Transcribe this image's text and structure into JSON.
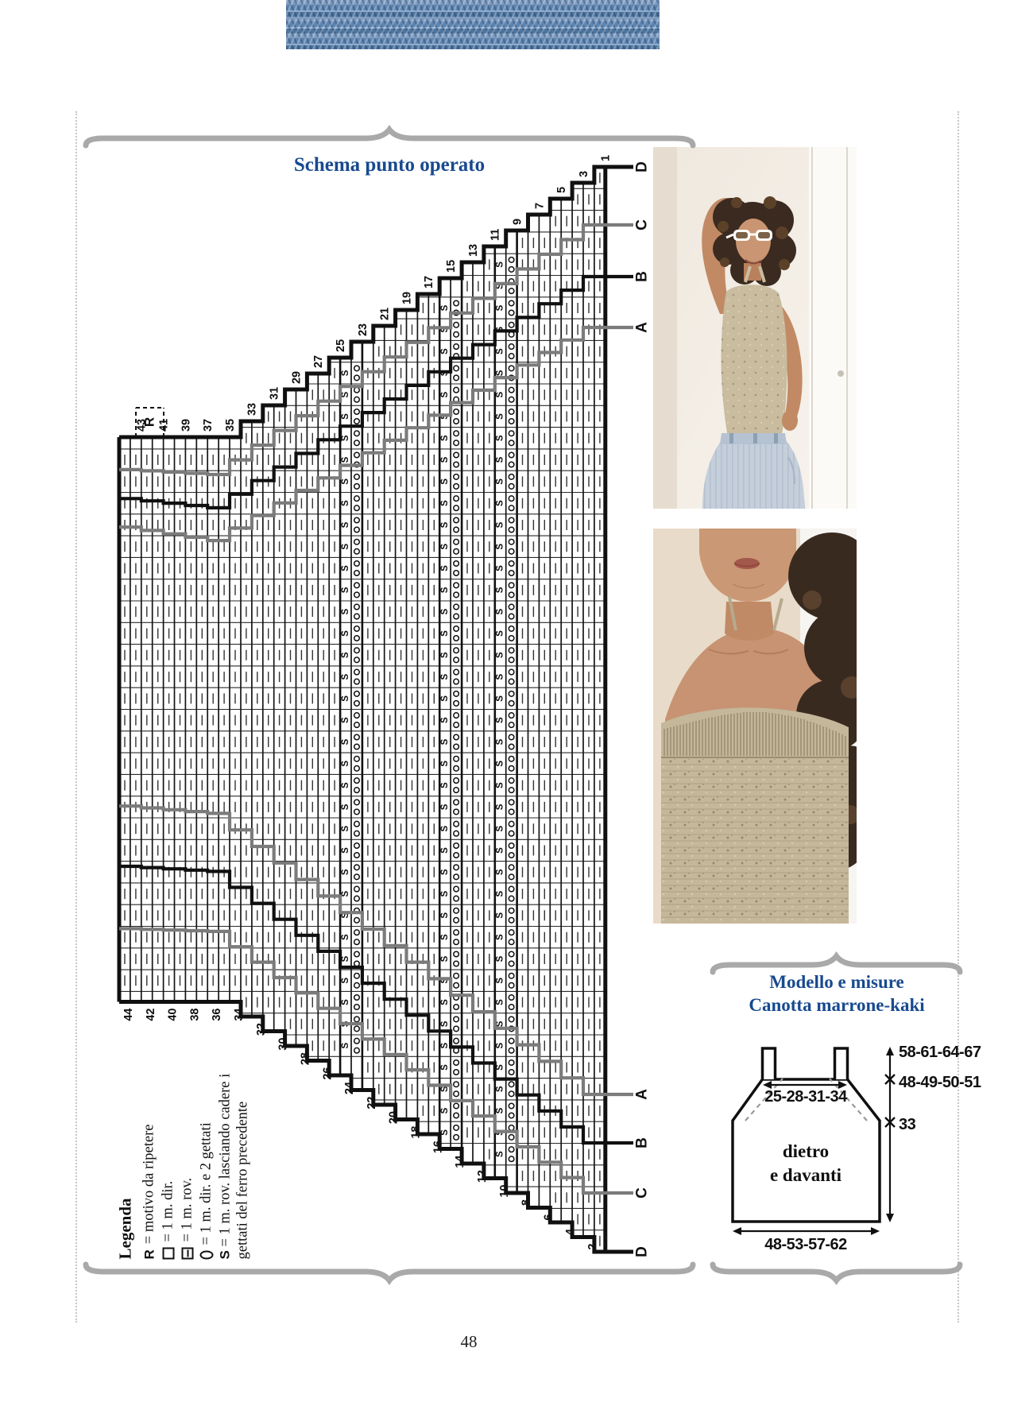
{
  "page": {
    "number": "48"
  },
  "colors": {
    "accent_blue": "#184a8f",
    "brace_gray": "#a9a9a9",
    "size_line_gray": "#7b7b7b",
    "line_black": "#101010"
  },
  "chart_section": {
    "title": "Schema punto operato",
    "repeat_label": "R",
    "top_row_numbers": [
      "1",
      "3",
      "5",
      "7",
      "9",
      "11",
      "13",
      "15",
      "17",
      "19",
      "21",
      "23",
      "25",
      "27",
      "29",
      "31",
      "33",
      "35",
      "37",
      "39",
      "41",
      "43"
    ],
    "bottom_row_numbers": [
      "2",
      "4",
      "6",
      "8",
      "10",
      "12",
      "14",
      "16",
      "18",
      "20",
      "22",
      "24",
      "26",
      "28",
      "30",
      "32",
      "34",
      "36",
      "38",
      "40",
      "42",
      "44"
    ],
    "size_letters_top": [
      "D",
      "C",
      "B",
      "A"
    ],
    "size_letters_bottom": [
      "A",
      "B",
      "C",
      "D"
    ]
  },
  "legend": {
    "title": "Legenda",
    "entries": [
      {
        "symbol": "R",
        "icon": "repeat-letter",
        "text": "= motivo da ripetere"
      },
      {
        "symbol": "",
        "icon": "knit-square-icon",
        "text": "= 1 m. dir."
      },
      {
        "symbol": "",
        "icon": "purl-square-icon",
        "text": "= 1 m. rov."
      },
      {
        "symbol": "",
        "icon": "yarnover-lens-icon",
        "text": "= 1 m. dir. e 2 gettati"
      },
      {
        "symbol": "S",
        "icon": "drop-stitch-letter",
        "text": "= 1 m. rov. lasciando cadere i gettati del ferro precedente"
      }
    ]
  },
  "model_section": {
    "title_line1": "Modello e misure",
    "title_line2": "Canotta marrone-kaki",
    "schematic": {
      "label_center_line1": "dietro",
      "label_center_line2": "e davanti",
      "top_width": "25-28-31-34",
      "bottom_width": "48-53-57-62",
      "total_height": "58-61-64-67",
      "upper_height": "48-49-50-51",
      "armhole_height": "33"
    }
  },
  "photos": {
    "top": "model-wearing-knit-tank-top",
    "bottom": "tank-top-neckline-closeup"
  }
}
